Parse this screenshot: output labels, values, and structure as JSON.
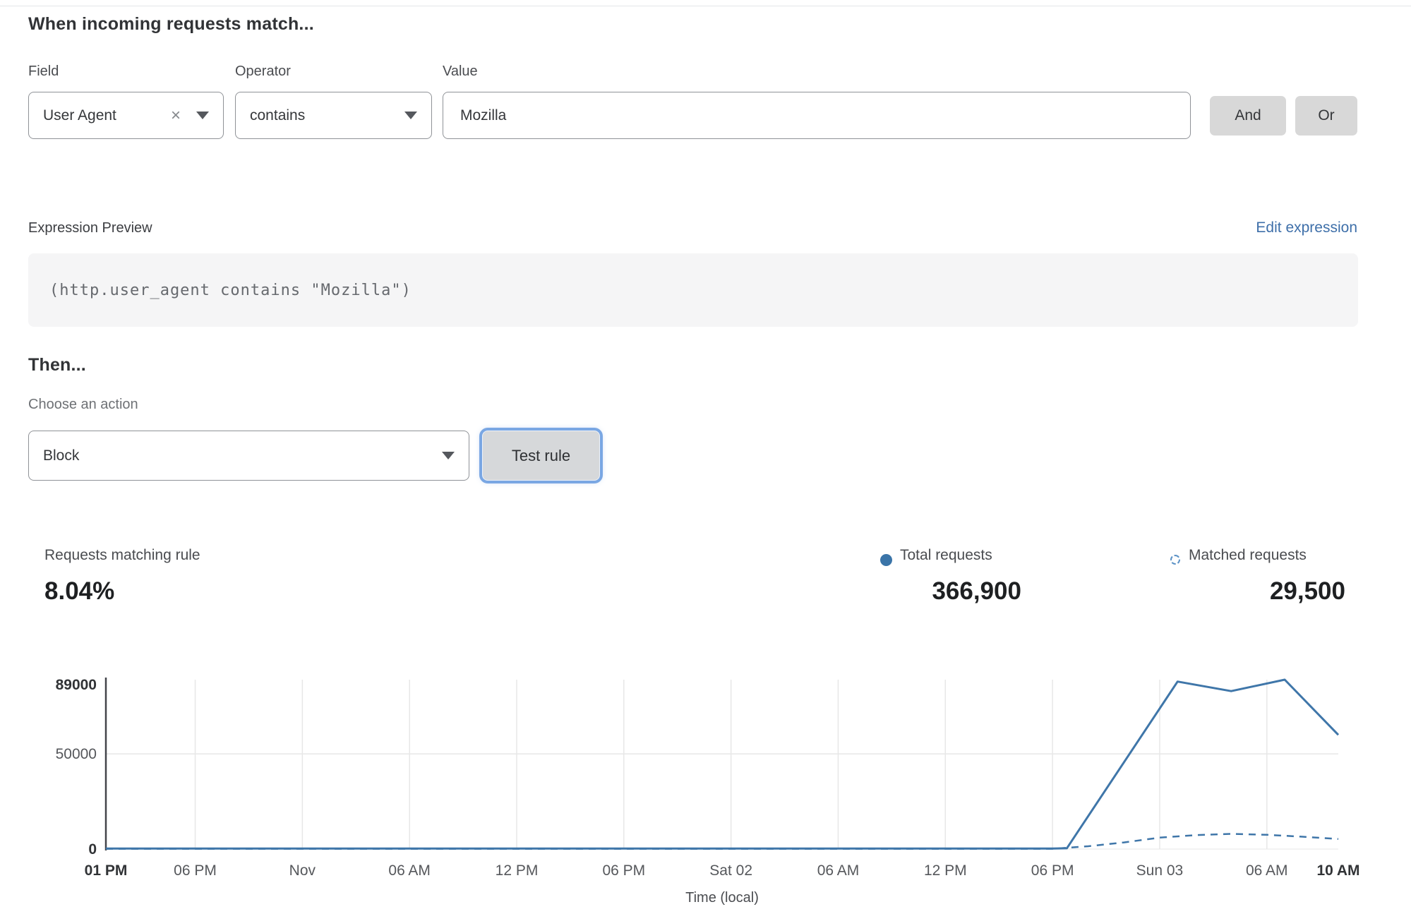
{
  "header": {
    "title": "When incoming requests match..."
  },
  "rule_builder": {
    "field_label": "Field",
    "operator_label": "Operator",
    "value_label": "Value",
    "field_selected": "User Agent",
    "operator_selected": "contains",
    "value_text": "Mozilla",
    "and_label": "And",
    "or_label": "Or"
  },
  "expression": {
    "preview_label": "Expression Preview",
    "edit_link": "Edit expression",
    "code": "(http.user_agent contains \"Mozilla\")"
  },
  "action": {
    "then_label": "Then...",
    "choose_label": "Choose an action",
    "selected": "Block",
    "test_button": "Test rule"
  },
  "stats": {
    "matching": {
      "label": "Requests matching rule",
      "value": "8.04%"
    },
    "total": {
      "label": "Total requests",
      "value": "366,900"
    },
    "matched": {
      "label": "Matched requests",
      "value": "29,500"
    }
  },
  "icons": {
    "clear": "×",
    "total_legend": "solid-dot",
    "matched_legend": "dashed-circle"
  },
  "colors": {
    "accent_blue": "#3f76a9",
    "link_blue": "#3e6fa9",
    "button_gray": "#d8d8d8",
    "focus_ring": "#7aa7e3",
    "grid_gray": "#e7e7e7",
    "axis_dark": "#43454a"
  },
  "chart_data": {
    "type": "line",
    "title": "",
    "xlabel": "Time (local)",
    "ylabel": "",
    "x_unit_hours_total": 69,
    "ylim": [
      0,
      89000
    ],
    "grid": {
      "vertical_at_ticks": true,
      "horizontal_values": [
        50000
      ],
      "baseline": 0
    },
    "x_ticks": [
      {
        "hour": 0,
        "label": "01 PM",
        "bold": true
      },
      {
        "hour": 5,
        "label": "06 PM",
        "bold": false
      },
      {
        "hour": 11,
        "label": "Nov",
        "bold": false
      },
      {
        "hour": 17,
        "label": "06 AM",
        "bold": false
      },
      {
        "hour": 23,
        "label": "12 PM",
        "bold": false
      },
      {
        "hour": 29,
        "label": "06 PM",
        "bold": false
      },
      {
        "hour": 35,
        "label": "Sat 02",
        "bold": false
      },
      {
        "hour": 41,
        "label": "06 AM",
        "bold": false
      },
      {
        "hour": 47,
        "label": "12 PM",
        "bold": false
      },
      {
        "hour": 53,
        "label": "06 PM",
        "bold": false
      },
      {
        "hour": 59,
        "label": "Sun 03",
        "bold": false
      },
      {
        "hour": 65,
        "label": "06 AM",
        "bold": false
      },
      {
        "hour": 69,
        "label": "10 AM",
        "bold": true
      }
    ],
    "y_ticks": [
      {
        "value": 0,
        "label": "0",
        "bold": true
      },
      {
        "value": 50000,
        "label": "50000",
        "bold": false
      },
      {
        "value": 89000,
        "label": "89000",
        "bold": true
      }
    ],
    "series": [
      {
        "name": "Total requests",
        "style": "solid",
        "color": "#3f76a9",
        "points": [
          [
            0,
            300
          ],
          [
            5,
            300
          ],
          [
            11,
            300
          ],
          [
            17,
            300
          ],
          [
            23,
            300
          ],
          [
            29,
            300
          ],
          [
            35,
            300
          ],
          [
            41,
            300
          ],
          [
            47,
            300
          ],
          [
            53,
            300
          ],
          [
            53.8,
            400
          ],
          [
            60,
            88000
          ],
          [
            63,
            83000
          ],
          [
            66,
            89000
          ],
          [
            69,
            60000
          ]
        ]
      },
      {
        "name": "Matched requests",
        "style": "dashed",
        "color": "#3f76a9",
        "points": [
          [
            0,
            150
          ],
          [
            5,
            150
          ],
          [
            11,
            150
          ],
          [
            17,
            150
          ],
          [
            23,
            150
          ],
          [
            29,
            150
          ],
          [
            35,
            150
          ],
          [
            41,
            150
          ],
          [
            47,
            150
          ],
          [
            53,
            150
          ],
          [
            55,
            1500
          ],
          [
            57,
            3500
          ],
          [
            59,
            6000
          ],
          [
            61,
            7300
          ],
          [
            63,
            8000
          ],
          [
            65,
            7500
          ],
          [
            67,
            6500
          ],
          [
            69,
            5300
          ]
        ]
      }
    ]
  }
}
